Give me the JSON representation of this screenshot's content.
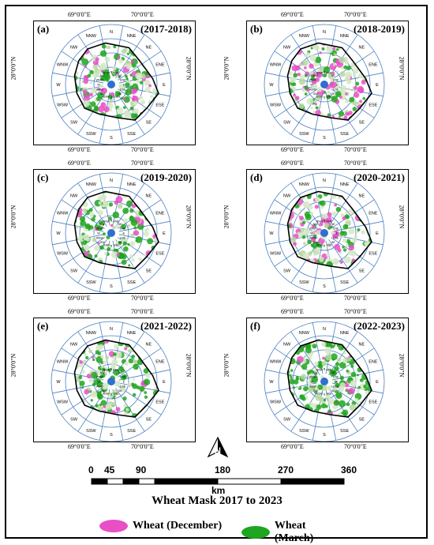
{
  "panels": [
    {
      "letter": "(a)",
      "years": "(2017-2018)",
      "pink": 0.55,
      "green": 0.75
    },
    {
      "letter": "(b)",
      "years": "(2018-2019)",
      "pink": 0.95,
      "green": 0.35
    },
    {
      "letter": "(c)",
      "years": "(2019-2020)",
      "pink": 0.25,
      "green": 0.85
    },
    {
      "letter": "(d)",
      "years": "(2020-2021)",
      "pink": 0.7,
      "green": 0.6
    },
    {
      "letter": "(e)",
      "years": "(2021-2022)",
      "pink": 0.3,
      "green": 0.95
    },
    {
      "letter": "(f)",
      "years": "(2022-2023)",
      "pink": 0.2,
      "green": 0.9
    }
  ],
  "ticks": {
    "lon1": "69°0'0\"E",
    "lon2": "70°0'0\"E",
    "lat": "28°0'0\"N"
  },
  "directions": [
    "N",
    "NNE",
    "NE",
    "ENE",
    "E",
    "ESE",
    "SE",
    "SSE",
    "S",
    "SSW",
    "SW",
    "WSW",
    "W",
    "WNW",
    "NW",
    "NNW"
  ],
  "inner_labels": [
    "N",
    "NNE",
    "NE",
    "ENE",
    "E",
    "ESE",
    "SE",
    "SSE",
    "S",
    "SSW",
    "SW",
    "WSW",
    "W",
    "WNW",
    "NW",
    "NNW"
  ],
  "scale": {
    "labels": [
      "0",
      "45",
      "90",
      "180",
      "270",
      "360"
    ],
    "unit": "km"
  },
  "legend": {
    "title": "Wheat Mask 2017 to 2023",
    "items": [
      {
        "label": "Wheat (December)",
        "color": "#e84fc5"
      },
      {
        "label": "Wheat (March)",
        "color": "#1fa51f"
      }
    ]
  },
  "colors": {
    "grid": "#4a7fc0",
    "boundary": "#000000",
    "center": "#2f6fd0"
  }
}
